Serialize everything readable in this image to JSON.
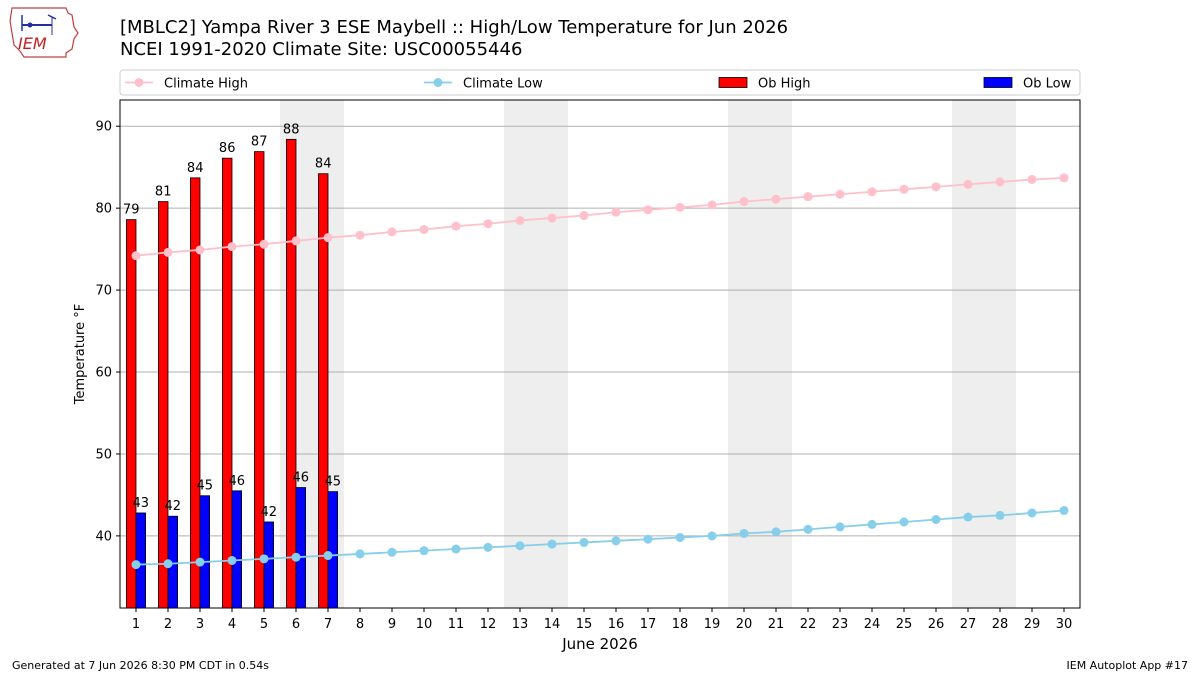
{
  "header": {
    "title_line1": "[MBLC2] Yampa River 3 ESE Maybell :: High/Low Temperature for Jun 2026",
    "title_line2": "NCEI 1991-2020 Climate Site: USC00055446"
  },
  "logo": {
    "icon": "iem-iowa-logo",
    "text": "IEM"
  },
  "footer": {
    "generated": "Generated at 7 Jun 2026 8:30 PM CDT in 0.54s",
    "app": "IEM Autoplot App #17"
  },
  "colors": {
    "climate_high": "#ffc0cb",
    "climate_low": "#87ceeb",
    "ob_high": "#ff0000",
    "ob_low": "#0000ff",
    "weekend_shade": "#eeeeee",
    "grid": "#b0b0b0"
  },
  "chart_data": {
    "type": "bar",
    "xlabel": "June 2026",
    "ylabel": "Temperature °F",
    "x": [
      1,
      2,
      3,
      4,
      5,
      6,
      7,
      8,
      9,
      10,
      11,
      12,
      13,
      14,
      15,
      16,
      17,
      18,
      19,
      20,
      21,
      22,
      23,
      24,
      25,
      26,
      27,
      28,
      29,
      30
    ],
    "xlim": [
      0.5,
      30.5
    ],
    "ylim": [
      31.2,
      93.2
    ],
    "yticks": [
      40,
      50,
      60,
      70,
      80,
      90
    ],
    "grid": "y-major",
    "legend_placement": "top",
    "shaded_weekends": [
      [
        6,
        7
      ],
      [
        13,
        14
      ],
      [
        20,
        21
      ],
      [
        27,
        28
      ]
    ],
    "series": [
      {
        "name": "Climate High",
        "type": "line",
        "values": [
          74.2,
          74.6,
          74.9,
          75.3,
          75.6,
          76.0,
          76.4,
          76.7,
          77.1,
          77.4,
          77.8,
          78.1,
          78.5,
          78.8,
          79.1,
          79.5,
          79.8,
          80.1,
          80.4,
          80.8,
          81.1,
          81.4,
          81.7,
          82.0,
          82.3,
          82.6,
          82.9,
          83.2,
          83.5,
          83.7
        ]
      },
      {
        "name": "Climate Low",
        "type": "line",
        "values": [
          36.5,
          36.6,
          36.8,
          37.0,
          37.2,
          37.4,
          37.6,
          37.8,
          38.0,
          38.2,
          38.4,
          38.6,
          38.8,
          39.0,
          39.2,
          39.4,
          39.6,
          39.8,
          40.0,
          40.3,
          40.5,
          40.8,
          41.1,
          41.4,
          41.7,
          42.0,
          42.3,
          42.5,
          42.8,
          43.1
        ]
      },
      {
        "name": "Ob High",
        "type": "bar",
        "x": [
          1,
          2,
          3,
          4,
          5,
          6,
          7
        ],
        "values": [
          78.6,
          80.8,
          83.7,
          86.1,
          86.9,
          88.4,
          84.2
        ],
        "labels": [
          "79",
          "81",
          "84",
          "86",
          "87",
          "88",
          "84"
        ]
      },
      {
        "name": "Ob Low",
        "type": "bar",
        "x": [
          1,
          2,
          3,
          4,
          5,
          6,
          7
        ],
        "values": [
          42.8,
          42.4,
          44.9,
          45.5,
          41.7,
          45.9,
          45.4
        ],
        "labels": [
          "43",
          "42",
          "45",
          "46",
          "42",
          "46",
          "45"
        ]
      }
    ]
  }
}
